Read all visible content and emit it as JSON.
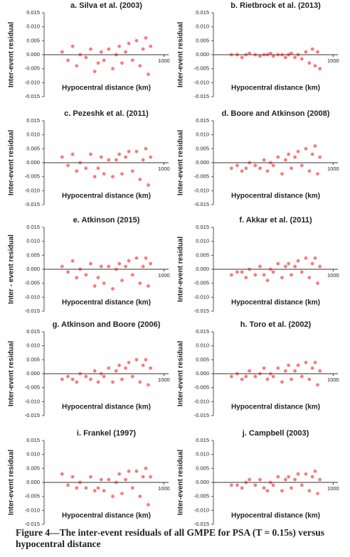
{
  "chart_data": [
    {
      "type": "scatter",
      "title": "a. Silva et al. (2003)",
      "ylabel": "Inter-event residual",
      "xlabel": "Hypocentral distance (km)",
      "xscale": "log",
      "color": "#ee1111",
      "x": [
        20,
        25,
        30,
        35,
        40,
        50,
        60,
        70,
        80,
        90,
        100,
        120,
        140,
        160,
        180,
        200,
        230,
        260,
        300,
        350,
        400,
        450,
        500,
        550,
        600
      ],
      "y": [
        0.001,
        -0.002,
        0.003,
        -0.004,
        0,
        -0.001,
        0.002,
        -0.006,
        -0.003,
        0.001,
        -0.002,
        0.002,
        -0.005,
        0,
        0.003,
        -0.003,
        0.001,
        0.004,
        -0.002,
        0.005,
        -0.004,
        0.002,
        0.006,
        -0.007,
        0.003
      ],
      "xlim": [
        10,
        1200
      ],
      "xticks": [
        1000
      ],
      "ylim": [
        -0.015,
        0.015
      ],
      "yticks": [
        0.015,
        {
          "value": 0.01,
          "label": "0.010"
        },
        0.005,
        {
          "value": 0,
          "label": "0.000"
        },
        -0.005,
        {
          "value": -0.01,
          "label": "-0.010"
        },
        -0.015
      ]
    },
    {
      "type": "scatter",
      "title": "b. Rietbrock et al. (2013)",
      "ylabel": "Inter-event residual",
      "xlabel": "Hypocentral distance (km)",
      "xscale": "log",
      "color": "#ee1111",
      "x": [
        20,
        25,
        30,
        35,
        40,
        50,
        60,
        70,
        80,
        90,
        100,
        120,
        140,
        160,
        180,
        200,
        230,
        260,
        300,
        350,
        400,
        450,
        500,
        550,
        600
      ],
      "y": [
        0,
        0,
        -0.001,
        0,
        0.0005,
        0,
        -0.0005,
        0,
        0,
        0.0005,
        -0.0005,
        0,
        0,
        -0.001,
        0,
        0.0005,
        -0.001,
        0,
        -0.0015,
        0.001,
        -0.003,
        0.002,
        -0.004,
        0.001,
        -0.005
      ],
      "xlim": [
        10,
        1200
      ],
      "xticks": [
        1000
      ],
      "ylim": [
        -0.015,
        0.015
      ],
      "yticks": [
        0.015,
        {
          "value": 0.01,
          "label": "0.010"
        },
        0.005,
        {
          "value": 0,
          "label": "0.000"
        },
        -0.005,
        {
          "value": -0.01,
          "label": "-0.010"
        },
        -0.015
      ]
    },
    {
      "type": "scatter",
      "title": "c. Pezeshk et al. (2011)",
      "ylabel": "Inter-event residual",
      "xlabel": "Hypocentral distance (km)",
      "xscale": "log",
      "color": "#ee1111",
      "x": [
        20,
        25,
        30,
        35,
        40,
        50,
        60,
        70,
        80,
        90,
        100,
        120,
        140,
        160,
        180,
        200,
        230,
        260,
        300,
        350,
        400,
        450,
        500,
        550,
        600
      ],
      "y": [
        0.002,
        -0.001,
        0.003,
        -0.003,
        0,
        -0.002,
        0.003,
        -0.005,
        -0.002,
        0.002,
        -0.004,
        0.001,
        -0.005,
        0.001,
        0.003,
        -0.004,
        0.002,
        0.004,
        -0.003,
        0.004,
        -0.006,
        0.001,
        0.005,
        -0.008,
        0.002
      ],
      "xlim": [
        10,
        1200
      ],
      "xticks": [
        1000
      ],
      "ylim": [
        -0.015,
        0.015
      ],
      "yticks": [
        0.015,
        {
          "value": 0.01,
          "label": "0.010"
        },
        0.005,
        {
          "value": 0,
          "label": "0.000"
        },
        -0.005,
        {
          "value": -0.01,
          "label": "-0.010"
        },
        -0.015
      ]
    },
    {
      "type": "scatter",
      "title": "d. Boore and Atkinson (2008)",
      "ylabel": "Inter-event residual",
      "xlabel": "Hypocentral distance (km)",
      "xscale": "log",
      "color": "#ee1111",
      "x": [
        20,
        25,
        30,
        35,
        40,
        50,
        60,
        70,
        80,
        90,
        100,
        120,
        140,
        160,
        180,
        200,
        230,
        260,
        300,
        350,
        400,
        450,
        500,
        550,
        600
      ],
      "y": [
        -0.002,
        -0.001,
        -0.003,
        -0.002,
        0,
        -0.001,
        -0.002,
        0.001,
        -0.003,
        0,
        -0.001,
        0.002,
        -0.004,
        0.001,
        0.003,
        -0.002,
        0.002,
        0.004,
        -0.001,
        0.005,
        -0.003,
        0.003,
        0.006,
        -0.004,
        0.002
      ],
      "xlim": [
        10,
        1200
      ],
      "xticks": [
        1000
      ],
      "ylim": [
        -0.015,
        0.015
      ],
      "yticks": [
        0.015,
        {
          "value": 0.01,
          "label": "0.010"
        },
        0.005,
        {
          "value": 0,
          "label": "0.000"
        },
        -0.005,
        {
          "value": -0.01,
          "label": "-0.010"
        },
        -0.015
      ]
    },
    {
      "type": "scatter",
      "title": "e. Atkinson (2015)",
      "ylabel": "Inter - event residual",
      "xlabel": "Hypocentral distance (km)",
      "xscale": "log",
      "color": "#ee1111",
      "x": [
        20,
        25,
        30,
        35,
        40,
        50,
        60,
        70,
        80,
        90,
        100,
        120,
        140,
        160,
        180,
        200,
        230,
        260,
        300,
        350,
        400,
        450,
        500,
        550,
        600
      ],
      "y": [
        0.001,
        -0.001,
        0.003,
        -0.003,
        0,
        -0.002,
        0.002,
        -0.006,
        -0.003,
        0.001,
        -0.005,
        0.001,
        -0.007,
        0,
        0.002,
        -0.004,
        0.001,
        0.003,
        -0.002,
        0.004,
        -0.005,
        0.001,
        0.004,
        -0.006,
        0.002
      ],
      "xlim": [
        10,
        1200
      ],
      "xticks": [
        1000
      ],
      "ylim": [
        -0.015,
        0.015
      ],
      "yticks": [
        0.015,
        {
          "value": 0.01,
          "label": "0.010"
        },
        0.005,
        {
          "value": 0,
          "label": "0.000"
        },
        -0.005,
        {
          "value": -0.01,
          "label": "-0.010"
        },
        -0.015
      ]
    },
    {
      "type": "scatter",
      "title": "f. Akkar et al. (2011)",
      "ylabel": "Inter-event residual",
      "xlabel": "Hypocentral distance (km)",
      "xscale": "log",
      "color": "#ee1111",
      "x": [
        20,
        25,
        30,
        35,
        40,
        50,
        60,
        70,
        80,
        90,
        100,
        120,
        140,
        160,
        180,
        200,
        230,
        260,
        300,
        350,
        400,
        450,
        500,
        550,
        600
      ],
      "y": [
        -0.002,
        -0.001,
        -0.001,
        -0.003,
        0,
        -0.002,
        0.001,
        -0.002,
        -0.004,
        0,
        -0.001,
        0.002,
        -0.003,
        0.001,
        0.002,
        -0.002,
        0.001,
        0.003,
        -0.001,
        0.004,
        -0.003,
        0.002,
        0.004,
        -0.005,
        0.001
      ],
      "xlim": [
        10,
        1200
      ],
      "xticks": [
        1000
      ],
      "ylim": [
        -0.015,
        0.015
      ],
      "yticks": [
        0.015,
        {
          "value": 0.01,
          "label": "0.010"
        },
        0.005,
        {
          "value": 0,
          "label": "0.000"
        },
        -0.005,
        {
          "value": -0.01,
          "label": "-0.010"
        },
        -0.015
      ]
    },
    {
      "type": "scatter",
      "title": "g. Atkinson and Boore (2006)",
      "ylabel": "Inter-event residual",
      "xlabel": "Hypocentral distance (km)",
      "xscale": "log",
      "color": "#ee1111",
      "x": [
        20,
        25,
        30,
        35,
        40,
        50,
        60,
        70,
        80,
        90,
        100,
        120,
        140,
        160,
        180,
        200,
        230,
        260,
        300,
        350,
        400,
        450,
        500,
        550,
        600
      ],
      "y": [
        -0.002,
        -0.001,
        -0.002,
        -0.003,
        0,
        -0.001,
        -0.002,
        0.001,
        -0.003,
        0,
        -0.001,
        0.002,
        -0.003,
        0.001,
        0.003,
        -0.002,
        0.002,
        0.004,
        -0.001,
        0.005,
        -0.003,
        0.003,
        0.005,
        -0.004,
        0.002
      ],
      "xlim": [
        10,
        1200
      ],
      "xticks": [
        1000
      ],
      "ylim": [
        -0.015,
        0.015
      ],
      "yticks": [
        0.015,
        {
          "value": 0.01,
          "label": "0.010"
        },
        0.005,
        {
          "value": 0,
          "label": "0.000"
        },
        -0.005,
        {
          "value": -0.01,
          "label": "-0.010"
        },
        -0.015
      ]
    },
    {
      "type": "scatter",
      "title": "h. Toro et al. (2002)",
      "ylabel": "Inter-event residual",
      "xlabel": "Hypocentral distance (km)",
      "xscale": "log",
      "color": "#ee1111",
      "x": [
        20,
        25,
        30,
        35,
        40,
        50,
        60,
        70,
        80,
        90,
        100,
        120,
        140,
        160,
        180,
        200,
        230,
        260,
        300,
        350,
        400,
        450,
        500,
        550,
        600
      ],
      "y": [
        -0.001,
        0,
        -0.002,
        -0.001,
        0.001,
        -0.001,
        0,
        0.002,
        -0.002,
        0,
        -0.001,
        0.002,
        -0.003,
        0.001,
        0.003,
        -0.002,
        0.001,
        0.003,
        -0.001,
        0.004,
        -0.002,
        0.002,
        0.004,
        -0.004,
        0.001
      ],
      "xlim": [
        10,
        1200
      ],
      "xticks": [
        1000
      ],
      "ylim": [
        -0.015,
        0.015
      ],
      "yticks": [
        0.015,
        {
          "value": 0.01,
          "label": "0.010"
        },
        0.005,
        {
          "value": 0,
          "label": "0.000"
        },
        -0.005,
        {
          "value": -0.01,
          "label": "-0.010"
        },
        -0.015
      ]
    },
    {
      "type": "scatter",
      "title": "i. Frankel (1997)",
      "ylabel": "Inter-event residual",
      "xlabel": "Hypocentral distance (km)",
      "xscale": "log",
      "color": "#ee1111",
      "x": [
        20,
        25,
        30,
        35,
        40,
        50,
        60,
        70,
        80,
        90,
        100,
        120,
        140,
        160,
        180,
        200,
        230,
        260,
        300,
        350,
        400,
        450,
        500,
        550,
        600
      ],
      "y": [
        0.003,
        -0.001,
        0.002,
        -0.002,
        0,
        -0.002,
        0.002,
        -0.003,
        -0.002,
        0.001,
        -0.003,
        0.001,
        -0.005,
        0,
        0.003,
        -0.004,
        0.001,
        0.004,
        -0.002,
        0.004,
        -0.005,
        0.002,
        0.005,
        -0.008,
        0.002
      ],
      "xlim": [
        10,
        1200
      ],
      "xticks": [
        1000
      ],
      "ylim": [
        -0.015,
        0.015
      ],
      "yticks": [
        0.015,
        {
          "value": 0.01,
          "label": "0.010"
        },
        0.005,
        {
          "value": 0,
          "label": "0.000"
        },
        -0.005,
        {
          "value": -0.01,
          "label": "-0.010"
        },
        -0.015
      ]
    },
    {
      "type": "scatter",
      "title": "j. Campbell (2003)",
      "ylabel": "Inter-event residual",
      "xlabel": "Hypocentral distance (km)",
      "xscale": "log",
      "color": "#ee1111",
      "x": [
        20,
        25,
        30,
        35,
        40,
        50,
        60,
        70,
        80,
        90,
        100,
        120,
        140,
        160,
        180,
        200,
        230,
        260,
        300,
        350,
        400,
        450,
        500,
        550,
        600
      ],
      "y": [
        -0.001,
        -0.001,
        -0.002,
        0,
        0.001,
        -0.001,
        0.001,
        -0.002,
        -0.003,
        0,
        -0.001,
        0.002,
        -0.003,
        0.001,
        0.002,
        -0.002,
        0.001,
        0.003,
        -0.001,
        0.003,
        -0.003,
        0.002,
        0.004,
        -0.004,
        0.001
      ],
      "xlim": [
        10,
        1200
      ],
      "xticks": [
        1000
      ],
      "ylim": [
        -0.015,
        0.015
      ],
      "yticks": [
        0.015,
        {
          "value": 0.01,
          "label": "0.010"
        },
        0.005,
        {
          "value": 0,
          "label": "0.000"
        },
        -0.005,
        {
          "value": -0.01,
          "label": "-0.010"
        },
        -0.015
      ]
    }
  ],
  "caption": "Figure 4—The inter-event residuals of all GMPE for PSA (T = 0.15s) versus hypocentral distance"
}
